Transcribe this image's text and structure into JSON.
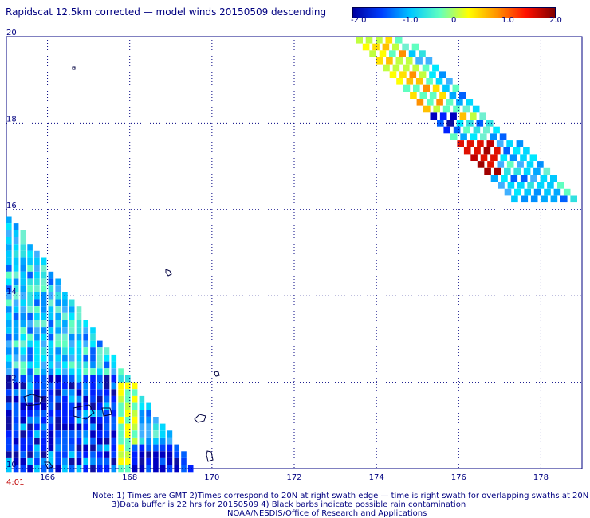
{
  "title": "Rapidscat 12.5km corrected — model winds 20150509 descending",
  "colorbar": {
    "labels": [
      "-2.0",
      "-1.0",
      "0",
      "1.0",
      "2.0"
    ],
    "min": -2.0,
    "max": 2.0,
    "colors": [
      "#0000a0",
      "#0040ff",
      "#00c8ff",
      "#60ffc0",
      "#ffff00",
      "#ff9000",
      "#ff1000",
      "#800000"
    ]
  },
  "map": {
    "lon_min": 165.0,
    "lon_max": 179.0,
    "lat_min": 10.0,
    "lat_max": 20.0,
    "lon_ticks": [
      "166",
      "168",
      "170",
      "172",
      "174",
      "176",
      "178"
    ],
    "lat_ticks": [
      "20",
      "18",
      "16",
      "14",
      "12",
      "10"
    ],
    "grid": "dotted",
    "swaths": [
      {
        "name": "upper-right swath",
        "lon_range": [
          173.5,
          178.8
        ],
        "lat_range": [
          16.2,
          20.0
        ]
      },
      {
        "name": "lower-left swath",
        "lon_range": [
          165.0,
          169.6
        ],
        "lat_range": [
          10.0,
          16.0
        ]
      }
    ]
  },
  "time_label": "4:01",
  "notes": [
    "Note: 1) Times are GMT 2)Times correspond to 20N at right swath edge — time is right swath for overlapping swaths at 20N",
    "3)Data buffer is 22 hrs for 20150509 4) Black barbs indicate possible rain contamination",
    "NOAA/NESDIS/Office of Research and Applications"
  ]
}
